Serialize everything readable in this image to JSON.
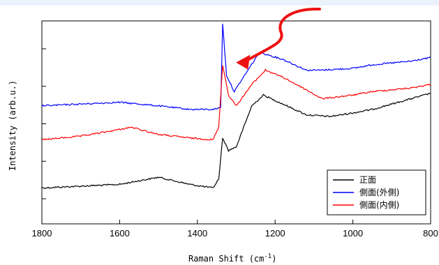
{
  "chart_data": {
    "type": "line",
    "xlabel_main": "Raman Shift (cm",
    "xlabel_sup": "-1",
    "xlabel_close": ")",
    "ylabel": "Intensity (arb.u.)",
    "xlim": [
      1800,
      800
    ],
    "x_ticks": [
      "1800",
      "1600",
      "1400",
      "1200",
      "1000",
      "800"
    ],
    "y_ticks_count": 5,
    "x_reversed": true,
    "grid": false,
    "legend_position": "bottom-right",
    "series": [
      {
        "name": "正面",
        "color": "#000000",
        "points": [
          [
            1800,
            0.08
          ],
          [
            1700,
            0.09
          ],
          [
            1600,
            0.1
          ],
          [
            1500,
            0.14
          ],
          [
            1420,
            0.1
          ],
          [
            1360,
            0.08
          ],
          [
            1345,
            0.13
          ],
          [
            1335,
            0.36
          ],
          [
            1320,
            0.29
          ],
          [
            1300,
            0.31
          ],
          [
            1260,
            0.54
          ],
          [
            1230,
            0.6
          ],
          [
            1180,
            0.55
          ],
          [
            1120,
            0.49
          ],
          [
            1060,
            0.48
          ],
          [
            1000,
            0.5
          ],
          [
            950,
            0.52
          ],
          [
            900,
            0.55
          ],
          [
            850,
            0.58
          ],
          [
            800,
            0.61
          ]
        ]
      },
      {
        "name": "側面(外側)",
        "color": "#0000ff",
        "points": [
          [
            1800,
            0.54
          ],
          [
            1700,
            0.55
          ],
          [
            1600,
            0.56
          ],
          [
            1500,
            0.54
          ],
          [
            1420,
            0.52
          ],
          [
            1360,
            0.52
          ],
          [
            1340,
            0.53
          ],
          [
            1335,
            1.0
          ],
          [
            1325,
            0.71
          ],
          [
            1305,
            0.62
          ],
          [
            1270,
            0.74
          ],
          [
            1240,
            0.84
          ],
          [
            1180,
            0.8
          ],
          [
            1120,
            0.74
          ],
          [
            1080,
            0.74
          ],
          [
            1000,
            0.75
          ],
          [
            950,
            0.77
          ],
          [
            900,
            0.78
          ],
          [
            850,
            0.79
          ],
          [
            800,
            0.81
          ]
        ]
      },
      {
        "name": "側面(内側)",
        "color": "#ff0000",
        "points": [
          [
            1800,
            0.35
          ],
          [
            1700,
            0.37
          ],
          [
            1620,
            0.4
          ],
          [
            1570,
            0.42
          ],
          [
            1500,
            0.38
          ],
          [
            1420,
            0.36
          ],
          [
            1360,
            0.35
          ],
          [
            1345,
            0.42
          ],
          [
            1335,
            0.77
          ],
          [
            1320,
            0.6
          ],
          [
            1300,
            0.54
          ],
          [
            1260,
            0.66
          ],
          [
            1225,
            0.74
          ],
          [
            1180,
            0.7
          ],
          [
            1120,
            0.63
          ],
          [
            1080,
            0.58
          ],
          [
            1000,
            0.6
          ],
          [
            950,
            0.62
          ],
          [
            900,
            0.63
          ],
          [
            850,
            0.64
          ],
          [
            800,
            0.66
          ]
        ]
      }
    ],
    "annotation": {
      "type": "arrow",
      "color": "#ee1111",
      "target_x": 1322,
      "target_y": 0.9
    }
  }
}
